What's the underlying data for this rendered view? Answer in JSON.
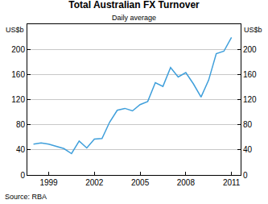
{
  "chart_data": {
    "type": "line",
    "title": "Total Australian FX Turnover",
    "subtitle": "Daily average",
    "y_label": "US$b",
    "y2_label": "US$b",
    "source": "Source: RBA",
    "x": [
      1998,
      1998.5,
      1999,
      1999.5,
      2000,
      2000.5,
      2001,
      2001.5,
      2002,
      2002.5,
      2003,
      2003.5,
      2004,
      2004.5,
      2005,
      2005.5,
      2006,
      2006.5,
      2007,
      2007.5,
      2008,
      2008.5,
      2009,
      2009.5,
      2010,
      2010.5,
      2011
    ],
    "values": [
      49,
      51,
      49,
      45,
      42,
      34,
      54,
      43,
      57,
      58,
      84,
      103,
      106,
      102,
      112,
      117,
      147,
      141,
      171,
      156,
      163,
      145,
      124,
      151,
      193,
      197,
      219
    ],
    "color": "#3f9fdb",
    "xlim": [
      1997.6,
      2011.6
    ],
    "xticks": [
      1999,
      2002,
      2005,
      2008,
      2011
    ],
    "ylim": [
      0,
      240
    ],
    "yticks": [
      0,
      40,
      80,
      120,
      160,
      200
    ],
    "y2lim": [
      0,
      240
    ],
    "y2ticks": [
      0,
      40,
      80,
      120,
      160,
      200
    ],
    "grid": true
  }
}
